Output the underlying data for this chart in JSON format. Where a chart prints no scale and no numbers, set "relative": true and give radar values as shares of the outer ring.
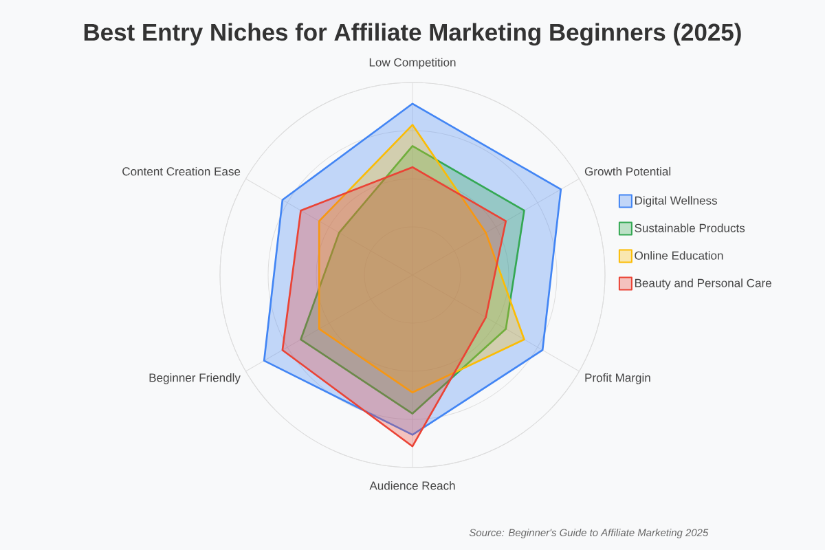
{
  "chart_data": {
    "type": "radar",
    "title": "Best Entry Niches for Affiliate Marketing Beginners (2025)",
    "categories": [
      "Low Competition",
      "Growth Potential",
      "Profit Margin",
      "Audience Reach",
      "Beginner Friendly",
      "Content Creation Ease"
    ],
    "relative": true,
    "series": [
      {
        "name": "Digital Wellness",
        "color": "#4285f4",
        "values": [
          0.89,
          0.89,
          0.78,
          0.83,
          0.89,
          0.78
        ]
      },
      {
        "name": "Sustainable Products",
        "color": "#34a853",
        "values": [
          0.67,
          0.67,
          0.56,
          0.72,
          0.67,
          0.44
        ]
      },
      {
        "name": "Online Education",
        "color": "#fbbc05",
        "values": [
          0.78,
          0.44,
          0.67,
          0.61,
          0.56,
          0.56
        ]
      },
      {
        "name": "Beauty and Personal Care",
        "color": "#ea4335",
        "values": [
          0.56,
          0.56,
          0.44,
          0.89,
          0.78,
          0.67
        ]
      }
    ],
    "grid": true,
    "legend": "right",
    "annotations": [
      "Source: Beginner's Guide to Affiliate Marketing 2025"
    ]
  }
}
